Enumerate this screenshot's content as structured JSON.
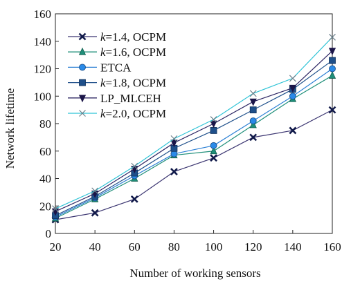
{
  "chart_data": {
    "type": "line",
    "title": "",
    "xlabel": "Number of working sensors",
    "ylabel": "Network lifetime",
    "x": [
      20,
      40,
      60,
      80,
      100,
      120,
      140,
      160
    ],
    "xlim": [
      20,
      160
    ],
    "ylim": [
      0,
      160
    ],
    "xticks": [
      20,
      40,
      60,
      80,
      100,
      120,
      140,
      160
    ],
    "yticks": [
      0,
      20,
      40,
      60,
      80,
      100,
      120,
      140,
      160
    ],
    "grid": false,
    "legend_position": "top-left",
    "series": [
      {
        "name_prefix": "k",
        "name_suffix": "=1.4, OCPM",
        "marker": "x-bold",
        "color": "#3a3470",
        "values": [
          10,
          15,
          25,
          45,
          55,
          70,
          75,
          90
        ]
      },
      {
        "name_prefix": "k",
        "name_suffix": "=1.6, OCPM",
        "marker": "triangle",
        "color": "#1f8f7a",
        "values": [
          11,
          25,
          40,
          57,
          60,
          79,
          98,
          115
        ]
      },
      {
        "name_prefix": "",
        "name_suffix": "ETCA",
        "marker": "circle",
        "color": "#2a7fd4",
        "values": [
          12,
          26,
          42,
          58,
          64,
          82,
          100,
          120
        ]
      },
      {
        "name_prefix": "k",
        "name_suffix": "=1.8, OCPM",
        "marker": "square",
        "color": "#1e4f8a",
        "values": [
          13,
          27,
          44,
          62,
          75,
          90,
          105,
          126
        ]
      },
      {
        "name_prefix": "",
        "name_suffix": "LP_MLCEH",
        "marker": "triangle-down",
        "color": "#2b2462",
        "values": [
          16,
          29,
          47,
          66,
          80,
          96,
          106,
          133
        ]
      },
      {
        "name_prefix": "k",
        "name_suffix": "=2.0, OCPM",
        "marker": "x",
        "color": "#2ec3d6",
        "values": [
          18,
          31,
          49,
          69,
          83,
          102,
          113,
          143
        ]
      }
    ]
  }
}
